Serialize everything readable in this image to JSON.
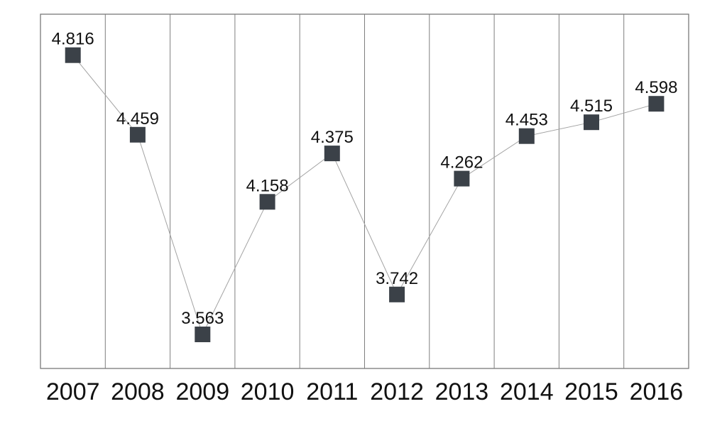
{
  "chart_data": {
    "type": "line",
    "categories": [
      "2007",
      "2008",
      "2009",
      "2010",
      "2011",
      "2012",
      "2013",
      "2014",
      "2015",
      "2016"
    ],
    "values": [
      4.816,
      4.459,
      3.563,
      4.158,
      4.375,
      3.742,
      4.262,
      4.453,
      4.515,
      4.598
    ],
    "point_labels": [
      "4.816",
      "4.459",
      "3.563",
      "4.158",
      "4.375",
      "3.742",
      "4.262",
      "4.453",
      "4.515",
      "4.598"
    ],
    "series": [
      {
        "name": "value",
        "values": [
          4.816,
          4.459,
          3.563,
          4.158,
          4.375,
          3.742,
          4.262,
          4.453,
          4.515,
          4.598
        ]
      }
    ],
    "title": "",
    "xlabel": "",
    "ylabel": "",
    "ylim": [
      3.41,
      5.0
    ],
    "grid": "vertical-only",
    "legend": "none",
    "marker": "square",
    "colors": {
      "marker": "#3b4148",
      "line": "#a3a3a3",
      "grid": "#7f7f7f",
      "frame": "#7a7a7a",
      "text": "#111111",
      "background": "#ffffff"
    }
  }
}
